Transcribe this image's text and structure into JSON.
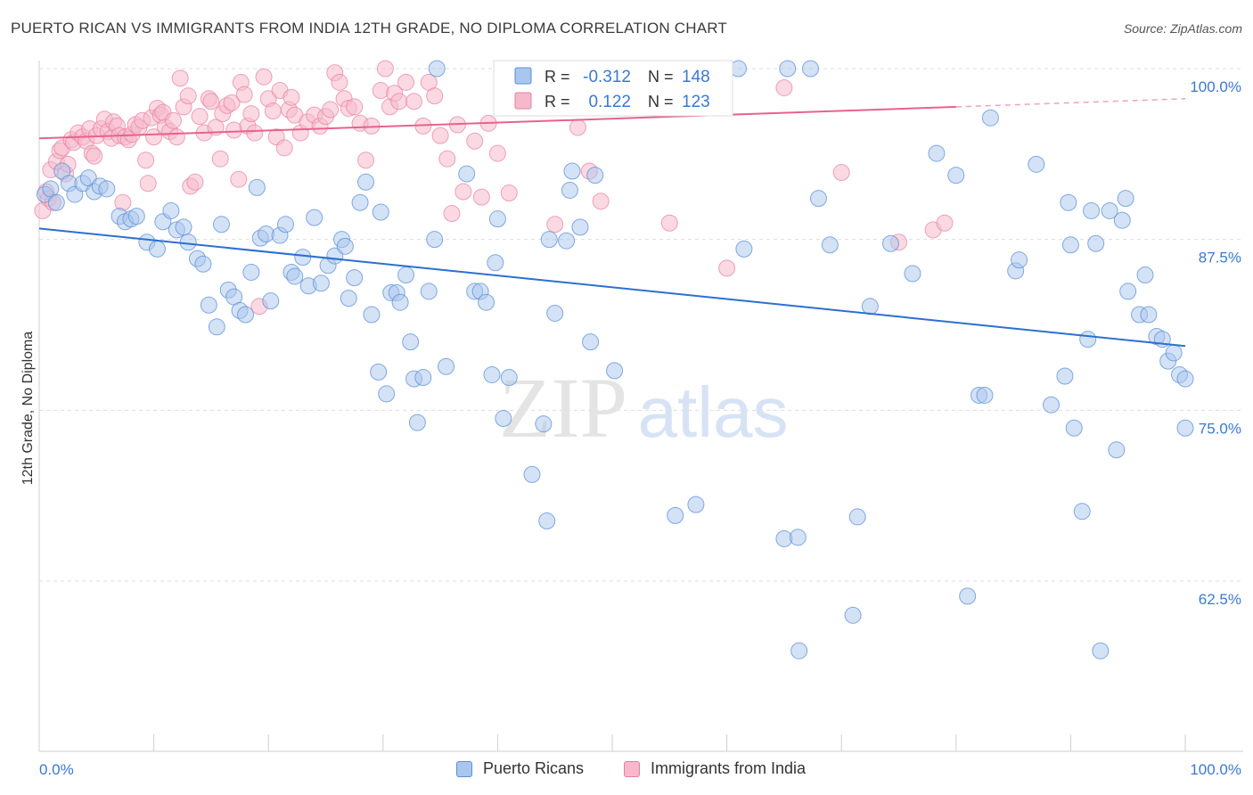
{
  "title": "PUERTO RICAN VS IMMIGRANTS FROM INDIA 12TH GRADE, NO DIPLOMA CORRELATION CHART",
  "source": "Source: ZipAtlas.com",
  "watermark": {
    "zip": "ZIP",
    "atlas": "atlas"
  },
  "colors": {
    "blue_fill": "#a9c6ee",
    "blue_stroke": "#5b8fd6",
    "blue_line": "#2c6fd1",
    "blue_text": "#3a78d4",
    "pink_fill": "#f6b9cc",
    "pink_stroke": "#e87ea0",
    "pink_line": "#e8628d",
    "grid": "#dddddd",
    "axis_text": "#3a78d4"
  },
  "stats_legend": [
    {
      "r_label": "R =",
      "r_value": "-0.312",
      "n_label": "N =",
      "n_value": "148",
      "color": "blue"
    },
    {
      "r_label": "R =",
      "r_value": "0.122",
      "n_label": "N =",
      "n_value": "123",
      "color": "pink"
    }
  ],
  "chart_data": {
    "type": "scatter",
    "title": "PUERTO RICAN VS IMMIGRANTS FROM INDIA 12TH GRADE, NO DIPLOMA CORRELATION CHART",
    "xlabel": "",
    "ylabel": "12th Grade, No Diploma",
    "xlim": [
      0,
      100
    ],
    "ylim": [
      50,
      100
    ],
    "x_tick_labels": [
      "0.0%",
      "100.0%"
    ],
    "y_tick_labels": [
      "100.0%",
      "87.5%",
      "75.0%",
      "62.5%"
    ],
    "y_tick_values": [
      100,
      87.5,
      75,
      62.5
    ],
    "legend_position": "bottom",
    "grid": true,
    "series": [
      {
        "name": "Puerto Ricans",
        "color": "#a9c6ee",
        "trend": {
          "x": [
            0,
            100
          ],
          "y": [
            88.3,
            79.7
          ]
        },
        "points": [
          [
            0.5,
            90.8
          ],
          [
            1.0,
            91.2
          ],
          [
            1.5,
            90.2
          ],
          [
            2.0,
            92.5
          ],
          [
            2.6,
            91.6
          ],
          [
            3.1,
            90.8
          ],
          [
            3.8,
            91.6
          ],
          [
            4.3,
            92.0
          ],
          [
            4.8,
            91.0
          ],
          [
            5.3,
            91.4
          ],
          [
            5.9,
            91.2
          ],
          [
            7.0,
            89.2
          ],
          [
            7.5,
            88.8
          ],
          [
            8.0,
            89.0
          ],
          [
            8.5,
            89.2
          ],
          [
            9.4,
            87.3
          ],
          [
            10.3,
            86.8
          ],
          [
            10.8,
            88.8
          ],
          [
            11.5,
            89.6
          ],
          [
            12.0,
            88.2
          ],
          [
            12.6,
            88.4
          ],
          [
            13.0,
            87.3
          ],
          [
            13.8,
            86.1
          ],
          [
            14.3,
            85.7
          ],
          [
            14.8,
            82.7
          ],
          [
            15.5,
            81.1
          ],
          [
            15.9,
            88.6
          ],
          [
            16.5,
            83.8
          ],
          [
            17.0,
            83.3
          ],
          [
            17.5,
            82.3
          ],
          [
            18.0,
            82.0
          ],
          [
            18.5,
            85.1
          ],
          [
            19.0,
            91.3
          ],
          [
            19.3,
            87.6
          ],
          [
            19.8,
            87.9
          ],
          [
            20.2,
            83.0
          ],
          [
            21.0,
            87.8
          ],
          [
            21.5,
            88.6
          ],
          [
            22.0,
            85.1
          ],
          [
            22.3,
            84.8
          ],
          [
            23.0,
            86.2
          ],
          [
            23.5,
            84.1
          ],
          [
            24.0,
            89.1
          ],
          [
            24.6,
            84.3
          ],
          [
            25.2,
            85.6
          ],
          [
            25.8,
            86.3
          ],
          [
            26.4,
            87.5
          ],
          [
            26.7,
            87.0
          ],
          [
            27.0,
            83.2
          ],
          [
            27.5,
            84.7
          ],
          [
            28.0,
            90.2
          ],
          [
            28.5,
            91.7
          ],
          [
            29.0,
            82.0
          ],
          [
            29.6,
            77.8
          ],
          [
            29.8,
            89.5
          ],
          [
            30.3,
            76.2
          ],
          [
            30.7,
            83.6
          ],
          [
            31.2,
            83.6
          ],
          [
            31.5,
            82.9
          ],
          [
            32.0,
            84.9
          ],
          [
            32.4,
            80.0
          ],
          [
            32.7,
            77.3
          ],
          [
            33.5,
            77.4
          ],
          [
            33.0,
            74.1
          ],
          [
            34.0,
            83.7
          ],
          [
            34.5,
            87.5
          ],
          [
            34.7,
            100.0
          ],
          [
            35.5,
            78.2
          ],
          [
            37.3,
            92.3
          ],
          [
            38.0,
            83.7
          ],
          [
            38.5,
            83.7
          ],
          [
            39.0,
            82.9
          ],
          [
            39.5,
            77.6
          ],
          [
            39.8,
            85.8
          ],
          [
            40.0,
            89.0
          ],
          [
            40.5,
            74.4
          ],
          [
            41.0,
            77.4
          ],
          [
            43.0,
            70.3
          ],
          [
            44.5,
            87.5
          ],
          [
            44.0,
            74.0
          ],
          [
            44.3,
            66.9
          ],
          [
            45.0,
            82.1
          ],
          [
            46.0,
            87.4
          ],
          [
            46.3,
            91.1
          ],
          [
            46.5,
            92.5
          ],
          [
            47.2,
            88.4
          ],
          [
            48.1,
            80.0
          ],
          [
            48.5,
            92.2
          ],
          [
            50.2,
            77.9
          ],
          [
            55.5,
            67.3
          ],
          [
            57.3,
            68.1
          ],
          [
            57.5,
            100.0
          ],
          [
            58.0,
            100.0
          ],
          [
            59.0,
            100.0
          ],
          [
            61.0,
            100.0
          ],
          [
            61.5,
            86.8
          ],
          [
            65.0,
            65.6
          ],
          [
            65.3,
            100.0
          ],
          [
            66.2,
            65.7
          ],
          [
            66.3,
            57.4
          ],
          [
            67.3,
            100.0
          ],
          [
            68.0,
            90.5
          ],
          [
            69.0,
            87.1
          ],
          [
            71.0,
            60.0
          ],
          [
            71.4,
            67.2
          ],
          [
            72.5,
            82.6
          ],
          [
            74.3,
            87.2
          ],
          [
            76.2,
            85.0
          ],
          [
            78.3,
            93.8
          ],
          [
            80.0,
            92.2
          ],
          [
            81.0,
            61.4
          ],
          [
            82.0,
            76.1
          ],
          [
            82.5,
            76.1
          ],
          [
            83.0,
            96.4
          ],
          [
            85.2,
            85.2
          ],
          [
            85.5,
            86.0
          ],
          [
            87.0,
            93.0
          ],
          [
            88.3,
            75.4
          ],
          [
            89.5,
            77.5
          ],
          [
            89.8,
            90.2
          ],
          [
            90.0,
            87.1
          ],
          [
            90.3,
            73.7
          ],
          [
            91.0,
            67.6
          ],
          [
            91.5,
            80.2
          ],
          [
            91.8,
            89.6
          ],
          [
            92.2,
            87.2
          ],
          [
            92.6,
            57.4
          ],
          [
            93.4,
            89.6
          ],
          [
            94.0,
            72.1
          ],
          [
            94.5,
            88.9
          ],
          [
            94.8,
            90.5
          ],
          [
            95.0,
            83.7
          ],
          [
            96.0,
            82.0
          ],
          [
            96.5,
            84.9
          ],
          [
            96.8,
            82.0
          ],
          [
            97.5,
            80.4
          ],
          [
            98.0,
            80.2
          ],
          [
            98.5,
            78.6
          ],
          [
            99.0,
            79.2
          ],
          [
            99.5,
            77.6
          ],
          [
            100.0,
            77.3
          ],
          [
            100.0,
            73.7
          ]
        ]
      },
      {
        "name": "Immigrants from India",
        "color": "#f6b9cc",
        "trend": {
          "x": [
            0,
            80
          ],
          "y": [
            94.9,
            97.2
          ]
        },
        "trend_dashed": {
          "x": [
            80,
            100
          ],
          "y": [
            97.2,
            97.8
          ]
        },
        "points": [
          [
            0.3,
            89.6
          ],
          [
            0.6,
            91.0
          ],
          [
            0.8,
            90.5
          ],
          [
            1.0,
            92.6
          ],
          [
            1.2,
            90.2
          ],
          [
            1.5,
            93.2
          ],
          [
            1.8,
            94.0
          ],
          [
            2.0,
            94.2
          ],
          [
            2.3,
            92.3
          ],
          [
            2.5,
            93.0
          ],
          [
            2.8,
            94.8
          ],
          [
            3.0,
            94.6
          ],
          [
            3.4,
            95.3
          ],
          [
            3.8,
            95.0
          ],
          [
            4.1,
            94.7
          ],
          [
            4.4,
            95.6
          ],
          [
            4.6,
            93.8
          ],
          [
            5.0,
            95.1
          ],
          [
            5.4,
            95.6
          ],
          [
            5.7,
            96.3
          ],
          [
            6.0,
            95.4
          ],
          [
            6.3,
            94.9
          ],
          [
            6.5,
            96.1
          ],
          [
            6.8,
            95.8
          ],
          [
            7.0,
            95.1
          ],
          [
            7.3,
            90.2
          ],
          [
            7.5,
            95.0
          ],
          [
            7.8,
            94.8
          ],
          [
            8.1,
            95.2
          ],
          [
            8.4,
            95.9
          ],
          [
            8.7,
            95.7
          ],
          [
            9.0,
            96.2
          ],
          [
            9.3,
            93.3
          ],
          [
            9.5,
            91.6
          ],
          [
            9.8,
            96.4
          ],
          [
            10.0,
            95.0
          ],
          [
            10.3,
            97.1
          ],
          [
            10.6,
            96.6
          ],
          [
            10.8,
            96.8
          ],
          [
            11.0,
            95.7
          ],
          [
            11.4,
            95.4
          ],
          [
            11.7,
            96.2
          ],
          [
            12.0,
            95.0
          ],
          [
            12.3,
            99.3
          ],
          [
            12.6,
            97.2
          ],
          [
            13.0,
            98.0
          ],
          [
            13.2,
            91.4
          ],
          [
            13.6,
            91.7
          ],
          [
            14.0,
            96.5
          ],
          [
            14.4,
            95.3
          ],
          [
            14.8,
            97.8
          ],
          [
            15.0,
            97.6
          ],
          [
            15.4,
            95.7
          ],
          [
            15.8,
            93.4
          ],
          [
            16.0,
            96.7
          ],
          [
            16.4,
            97.3
          ],
          [
            16.8,
            97.5
          ],
          [
            17.0,
            95.5
          ],
          [
            17.4,
            91.9
          ],
          [
            17.6,
            99.0
          ],
          [
            17.9,
            98.1
          ],
          [
            18.2,
            95.8
          ],
          [
            18.5,
            96.7
          ],
          [
            18.8,
            95.3
          ],
          [
            19.2,
            82.6
          ],
          [
            19.6,
            99.4
          ],
          [
            20.0,
            97.8
          ],
          [
            20.4,
            96.9
          ],
          [
            20.7,
            95.0
          ],
          [
            21.0,
            98.4
          ],
          [
            21.4,
            94.2
          ],
          [
            21.8,
            97.0
          ],
          [
            22.0,
            97.9
          ],
          [
            22.3,
            96.6
          ],
          [
            22.8,
            95.3
          ],
          [
            23.4,
            96.1
          ],
          [
            24.0,
            96.6
          ],
          [
            24.5,
            95.8
          ],
          [
            25.0,
            96.5
          ],
          [
            25.4,
            97.0
          ],
          [
            25.8,
            99.7
          ],
          [
            26.2,
            99.0
          ],
          [
            26.6,
            97.8
          ],
          [
            27.0,
            97.1
          ],
          [
            27.5,
            97.2
          ],
          [
            28.0,
            96.0
          ],
          [
            28.5,
            93.3
          ],
          [
            29.0,
            95.8
          ],
          [
            29.8,
            98.4
          ],
          [
            30.2,
            100.0
          ],
          [
            30.6,
            97.2
          ],
          [
            31.0,
            98.2
          ],
          [
            31.4,
            97.6
          ],
          [
            32.0,
            99.0
          ],
          [
            32.7,
            97.6
          ],
          [
            33.5,
            95.8
          ],
          [
            34.0,
            99.0
          ],
          [
            34.5,
            98.0
          ],
          [
            35.0,
            95.1
          ],
          [
            35.6,
            93.4
          ],
          [
            36.0,
            89.4
          ],
          [
            36.5,
            95.9
          ],
          [
            37.0,
            91.0
          ],
          [
            38.0,
            94.7
          ],
          [
            38.6,
            90.6
          ],
          [
            39.2,
            96.0
          ],
          [
            40.0,
            93.8
          ],
          [
            41.0,
            90.9
          ],
          [
            42.0,
            99.5
          ],
          [
            43.0,
            99.4
          ],
          [
            44.0,
            98.3
          ],
          [
            45.0,
            88.6
          ],
          [
            46.0,
            100.0
          ],
          [
            47.0,
            95.7
          ],
          [
            48.0,
            92.5
          ],
          [
            49.0,
            90.3
          ],
          [
            52.0,
            98.6
          ],
          [
            55.0,
            88.7
          ],
          [
            60.0,
            85.4
          ],
          [
            65.0,
            98.6
          ],
          [
            70.0,
            92.4
          ],
          [
            75.0,
            87.3
          ],
          [
            78.0,
            88.2
          ],
          [
            79.0,
            88.7
          ],
          [
            47.0,
            97.2
          ],
          [
            4.8,
            93.6
          ]
        ]
      }
    ]
  },
  "bottom_legend": [
    {
      "label": "Puerto Ricans",
      "color": "blue"
    },
    {
      "label": "Immigrants from India",
      "color": "pink"
    }
  ]
}
